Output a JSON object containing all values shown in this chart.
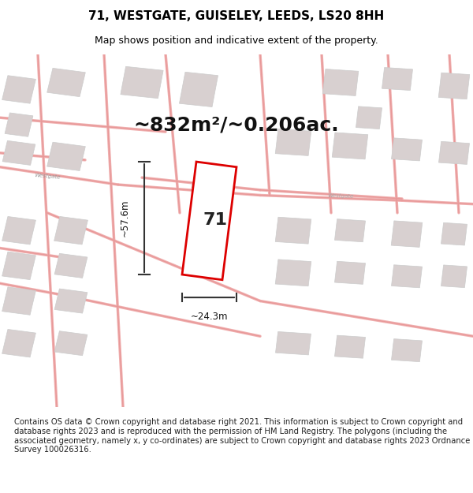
{
  "title": "71, WESTGATE, GUISELEY, LEEDS, LS20 8HH",
  "subtitle": "Map shows position and indicative extent of the property.",
  "area_text": "~832m²/~0.206ac.",
  "dim_width": "~24.3m",
  "dim_height": "~57.6m",
  "property_label": "71",
  "footer": "Contains OS data © Crown copyright and database right 2021. This information is subject to Crown copyright and database rights 2023 and is reproduced with the permission of HM Land Registry. The polygons (including the associated geometry, namely x, y co-ordinates) are subject to Crown copyright and database rights 2023 Ordnance Survey 100026316.",
  "background_color": "#f5f0f0",
  "map_bg": "#faf7f7",
  "road_color": "#f5c0c0",
  "building_color": "#d8d0d0",
  "property_outline_color": "#dd0000",
  "dim_line_color": "#333333",
  "title_fontsize": 11,
  "subtitle_fontsize": 9,
  "area_fontsize": 18,
  "label_fontsize": 16,
  "footer_fontsize": 7.2
}
